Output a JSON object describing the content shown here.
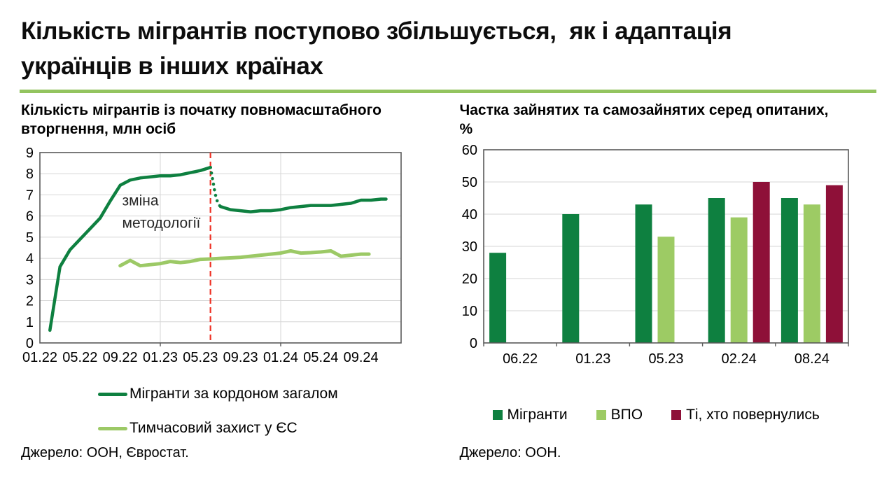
{
  "page": {
    "title_lines": [
      "Кількість мігрантів поступово збільшується,  як і адаптація",
      "українців в інших країнах"
    ],
    "accent_color": "#93C45F"
  },
  "chart_data": [
    {
      "type": "line",
      "title_lines": [
        "Кількість мігрантів із початку повномасштабного",
        "вторгнення, млн осіб"
      ],
      "title": "Кількість мігрантів із початку повномасштабного вторгнення, млн осіб",
      "x_unit": "months since 01.2022",
      "x_range": [
        0,
        36
      ],
      "x_tick_positions": [
        0,
        4,
        8,
        12,
        16,
        20,
        24,
        28,
        32
      ],
      "x_tick_labels": [
        "01.22",
        "05.22",
        "09.22",
        "01.23",
        "05.23",
        "09.23",
        "01.24",
        "05.24",
        "09.24"
      ],
      "ylim": [
        0,
        9
      ],
      "y_ticks": [
        0,
        1,
        2,
        3,
        4,
        5,
        6,
        7,
        8,
        9
      ],
      "vertical_gridlines": [
        12,
        24
      ],
      "grid_color": "#D6D6D6",
      "axis_color": "#595959",
      "reference_line": {
        "x_month": 17,
        "meaning": "зміна методології",
        "color": "#EE3124",
        "style": "dashed"
      },
      "annotation": {
        "x_month": 8.2,
        "lines": [
          "зміна",
          "методології"
        ],
        "y_values": [
          6.5,
          5.45
        ],
        "color": "#262626"
      },
      "series": [
        {
          "name": "Мігранти за кордоном загалом",
          "color": "#0E8040",
          "style": "solid",
          "width": 4.5,
          "show_in_legend": true,
          "points": [
            [
              1,
              0.6
            ],
            [
              2,
              3.6
            ],
            [
              3,
              4.4
            ],
            [
              4,
              4.9
            ],
            [
              5,
              5.4
            ],
            [
              6,
              5.9
            ],
            [
              7,
              6.7
            ],
            [
              8,
              7.45
            ],
            [
              9,
              7.7
            ],
            [
              10,
              7.8
            ],
            [
              11,
              7.85
            ],
            [
              12,
              7.9
            ],
            [
              13,
              7.9
            ],
            [
              14,
              7.95
            ],
            [
              15,
              8.05
            ],
            [
              16,
              8.15
            ],
            [
              17,
              8.3
            ]
          ]
        },
        {
          "name": "Мігранти за кордоном загалом (перехід, зміна методології)",
          "color": "#0E8040",
          "style": "dotted",
          "width": 4.5,
          "show_in_legend": false,
          "points": [
            [
              17,
              8.3
            ],
            [
              17.15,
              7.9
            ],
            [
              17.3,
              7.5
            ],
            [
              17.45,
              7.1
            ],
            [
              17.6,
              6.8
            ],
            [
              17.8,
              6.55
            ],
            [
              18,
              6.45
            ]
          ]
        },
        {
          "name": "Мігранти за кордоном загалом (після зміни методології)",
          "color": "#0E8040",
          "style": "solid",
          "width": 4.5,
          "show_in_legend": false,
          "points": [
            [
              18,
              6.45
            ],
            [
              19,
              6.3
            ],
            [
              20,
              6.25
            ],
            [
              21,
              6.2
            ],
            [
              22,
              6.25
            ],
            [
              23,
              6.25
            ],
            [
              24,
              6.3
            ],
            [
              25,
              6.4
            ],
            [
              26,
              6.45
            ],
            [
              27,
              6.5
            ],
            [
              28,
              6.5
            ],
            [
              29,
              6.5
            ],
            [
              30,
              6.55
            ],
            [
              31,
              6.6
            ],
            [
              32,
              6.75
            ],
            [
              33,
              6.75
            ],
            [
              34,
              6.8
            ],
            [
              34.5,
              6.8
            ]
          ]
        },
        {
          "name": "Тимчасовий захист у ЄС",
          "color": "#9CC966",
          "style": "solid",
          "width": 5,
          "show_in_legend": true,
          "points": [
            [
              8,
              3.65
            ],
            [
              9,
              3.9
            ],
            [
              10,
              3.65
            ],
            [
              11,
              3.7
            ],
            [
              12,
              3.75
            ],
            [
              13,
              3.85
            ],
            [
              14,
              3.8
            ],
            [
              15,
              3.85
            ],
            [
              16,
              3.95
            ],
            [
              17,
              3.97
            ],
            [
              18,
              4.0
            ],
            [
              19,
              4.02
            ],
            [
              20,
              4.05
            ],
            [
              21,
              4.1
            ],
            [
              22,
              4.15
            ],
            [
              23,
              4.2
            ],
            [
              24,
              4.25
            ],
            [
              25,
              4.35
            ],
            [
              26,
              4.25
            ],
            [
              27,
              4.27
            ],
            [
              28,
              4.3
            ],
            [
              29,
              4.35
            ],
            [
              30,
              4.1
            ],
            [
              31,
              4.15
            ],
            [
              32,
              4.2
            ],
            [
              32.8,
              4.2
            ]
          ]
        }
      ],
      "legend_position": "below",
      "source": "Джерело: ООН, Євростат."
    },
    {
      "type": "bar",
      "title_lines": [
        "Частка зайнятих та самозайнятих серед опитаних,",
        "%"
      ],
      "title": "Частка зайнятих та самозайнятих серед опитаних, %",
      "categories": [
        "06.22",
        "01.23",
        "05.23",
        "02.24",
        "08.24"
      ],
      "ylim": [
        0,
        60
      ],
      "y_ticks": [
        0,
        10,
        20,
        30,
        40,
        50,
        60
      ],
      "grid_color": "#D6D6D6",
      "axis_color": "#595959",
      "series": [
        {
          "name": "Мігранти",
          "color": "#0E8040",
          "values": [
            28,
            40,
            43,
            45,
            45
          ]
        },
        {
          "name": "ВПО",
          "color": "#9DCB64",
          "values": [
            null,
            null,
            33,
            39,
            43
          ]
        },
        {
          "name": "Ті, хто повернулись",
          "color": "#8E1038",
          "values": [
            null,
            null,
            null,
            50,
            49
          ]
        }
      ],
      "legend_position": "below",
      "source": "Джерело: ООН."
    }
  ]
}
